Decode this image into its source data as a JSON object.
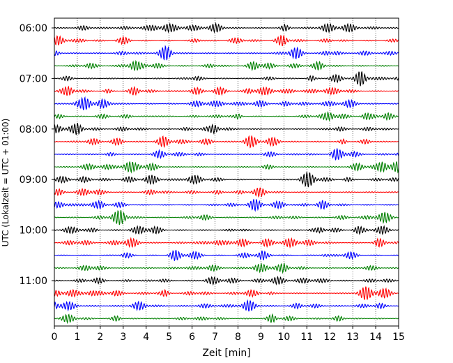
{
  "chart_data": {
    "type": "line",
    "xlabel": "Zeit  [min]",
    "ylabel": "UTC (Lokalzeit = UTC + 01:00)",
    "xlim": [
      0,
      15
    ],
    "x_ticks": [
      0,
      1,
      2,
      3,
      4,
      5,
      6,
      7,
      8,
      9,
      10,
      11,
      12,
      13,
      14,
      15
    ],
    "y_tick_labels": [
      "06:00",
      "07:00",
      "08:00",
      "09:00",
      "10:00",
      "11:00"
    ],
    "grid": "vertical dotted",
    "traces_per_hour": 4,
    "trace_minutes": 15,
    "trace_start_times": [
      "06:00",
      "06:15",
      "06:30",
      "06:45",
      "07:00",
      "07:15",
      "07:30",
      "07:45",
      "08:00",
      "08:15",
      "08:30",
      "08:45",
      "09:00",
      "09:15",
      "09:30",
      "09:45",
      "10:00",
      "10:15",
      "10:30",
      "10:45",
      "11:00",
      "11:15",
      "11:30",
      "11:45"
    ],
    "trace_colors": [
      "#000000",
      "#ff0000",
      "#0000ff",
      "#008000"
    ]
  }
}
